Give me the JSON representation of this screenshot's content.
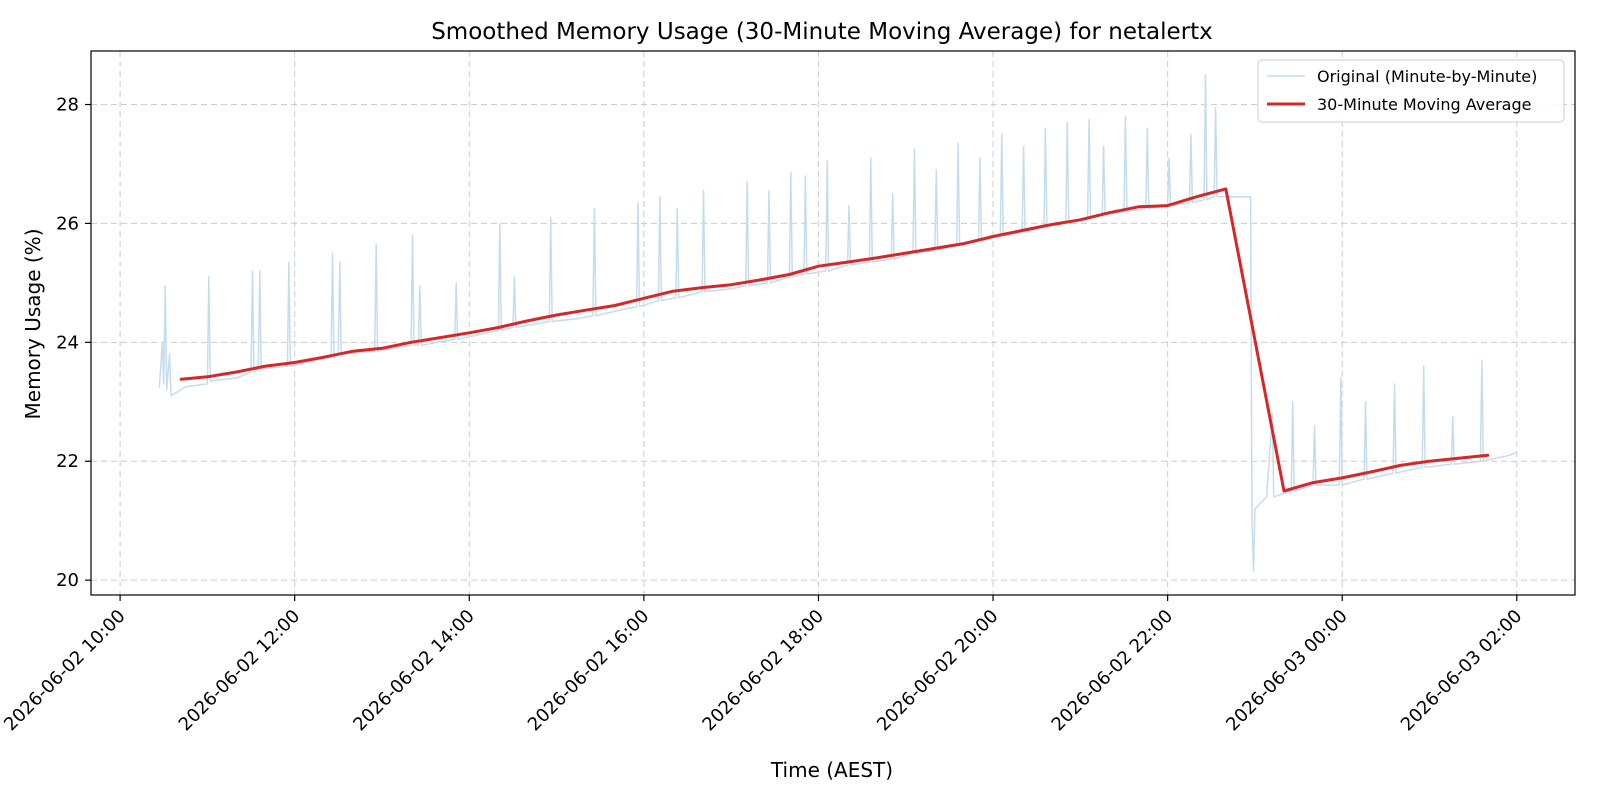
{
  "chart_data": {
    "type": "line",
    "title": "Smoothed Memory Usage (30-Minute Moving Average) for netalertx",
    "xlabel": "Time (AEST)",
    "ylabel": "Memory Usage (%)",
    "xlim": [
      "2026-06-02 09:40",
      "2026-06-03 02:40"
    ],
    "ylim": [
      19.75,
      28.9
    ],
    "grid": true,
    "legend": "top-right",
    "x_ticks": [
      "2026-06-02 10:00",
      "2026-06-02 12:00",
      "2026-06-02 14:00",
      "2026-06-02 16:00",
      "2026-06-02 18:00",
      "2026-06-02 20:00",
      "2026-06-02 22:00",
      "2026-06-03 00:00",
      "2026-06-03 02:00"
    ],
    "x_tick_labels": [
      "2026-06-02 10:00",
      "2026-06-02 12:00",
      "2026-06-02 14:00",
      "2026-06-02 16:00",
      "2026-06-02 18:00",
      "2026-06-02 20:00",
      "2026-06-02 22:00",
      "2026-06-03 00:00",
      "2026-06-03 02:00"
    ],
    "y_ticks": [
      20,
      22,
      24,
      26,
      28
    ],
    "y_tick_labels": [
      "20",
      "22",
      "24",
      "26",
      "28"
    ],
    "series": [
      {
        "name": "Original (Minute-by-Minute)",
        "color": "#c6dcec",
        "points": [
          [
            "2026-06-02 10:27",
            23.25
          ],
          [
            "2026-06-02 10:29",
            24.0
          ],
          [
            "2026-06-02 10:30",
            23.3
          ],
          [
            "2026-06-02 10:31",
            24.95
          ],
          [
            "2026-06-02 10:32",
            23.2
          ],
          [
            "2026-06-02 10:34",
            23.8
          ],
          [
            "2026-06-02 10:35",
            23.1
          ],
          [
            "2026-06-02 10:45",
            23.25
          ],
          [
            "2026-06-02 11:00",
            23.3
          ],
          [
            "2026-06-02 11:01",
            25.1
          ],
          [
            "2026-06-02 11:02",
            23.35
          ],
          [
            "2026-06-02 11:20",
            23.4
          ],
          [
            "2026-06-02 11:30",
            23.5
          ],
          [
            "2026-06-02 11:31",
            25.2
          ],
          [
            "2026-06-02 11:32",
            23.5
          ],
          [
            "2026-06-02 11:35",
            23.55
          ],
          [
            "2026-06-02 11:36",
            25.2
          ],
          [
            "2026-06-02 11:37",
            23.55
          ],
          [
            "2026-06-02 11:55",
            23.6
          ],
          [
            "2026-06-02 11:56",
            25.35
          ],
          [
            "2026-06-02 11:57",
            23.6
          ],
          [
            "2026-06-02 12:15",
            23.7
          ],
          [
            "2026-06-02 12:25",
            23.75
          ],
          [
            "2026-06-02 12:26",
            25.5
          ],
          [
            "2026-06-02 12:27",
            23.75
          ],
          [
            "2026-06-02 12:30",
            23.8
          ],
          [
            "2026-06-02 12:31",
            25.35
          ],
          [
            "2026-06-02 12:32",
            23.8
          ],
          [
            "2026-06-02 12:55",
            23.85
          ],
          [
            "2026-06-02 12:56",
            25.65
          ],
          [
            "2026-06-02 12:57",
            23.85
          ],
          [
            "2026-06-02 13:20",
            23.95
          ],
          [
            "2026-06-02 13:21",
            25.8
          ],
          [
            "2026-06-02 13:22",
            23.95
          ],
          [
            "2026-06-02 13:25",
            23.95
          ],
          [
            "2026-06-02 13:26",
            24.95
          ],
          [
            "2026-06-02 13:27",
            23.95
          ],
          [
            "2026-06-02 13:50",
            24.05
          ],
          [
            "2026-06-02 13:51",
            25.0
          ],
          [
            "2026-06-02 13:52",
            24.05
          ],
          [
            "2026-06-02 14:20",
            24.2
          ],
          [
            "2026-06-02 14:21",
            26.0
          ],
          [
            "2026-06-02 14:22",
            24.2
          ],
          [
            "2026-06-02 14:30",
            24.25
          ],
          [
            "2026-06-02 14:31",
            25.1
          ],
          [
            "2026-06-02 14:32",
            24.25
          ],
          [
            "2026-06-02 14:55",
            24.35
          ],
          [
            "2026-06-02 14:56",
            26.1
          ],
          [
            "2026-06-02 14:57",
            24.35
          ],
          [
            "2026-06-02 15:15",
            24.4
          ],
          [
            "2026-06-02 15:25",
            24.45
          ],
          [
            "2026-06-02 15:26",
            26.25
          ],
          [
            "2026-06-02 15:27",
            24.45
          ],
          [
            "2026-06-02 15:45",
            24.55
          ],
          [
            "2026-06-02 15:55",
            24.6
          ],
          [
            "2026-06-02 15:56",
            26.35
          ],
          [
            "2026-06-02 15:57",
            24.6
          ],
          [
            "2026-06-02 16:10",
            24.7
          ],
          [
            "2026-06-02 16:11",
            26.45
          ],
          [
            "2026-06-02 16:12",
            24.7
          ],
          [
            "2026-06-02 16:22",
            24.75
          ],
          [
            "2026-06-02 16:23",
            26.25
          ],
          [
            "2026-06-02 16:24",
            24.75
          ],
          [
            "2026-06-02 16:40",
            24.85
          ],
          [
            "2026-06-02 16:41",
            26.55
          ],
          [
            "2026-06-02 16:42",
            24.85
          ],
          [
            "2026-06-02 17:00",
            24.9
          ],
          [
            "2026-06-02 17:10",
            24.95
          ],
          [
            "2026-06-02 17:11",
            26.7
          ],
          [
            "2026-06-02 17:12",
            24.95
          ],
          [
            "2026-06-02 17:25",
            25.0
          ],
          [
            "2026-06-02 17:26",
            26.55
          ],
          [
            "2026-06-02 17:27",
            25.0
          ],
          [
            "2026-06-02 17:40",
            25.1
          ],
          [
            "2026-06-02 17:41",
            26.85
          ],
          [
            "2026-06-02 17:42",
            25.1
          ],
          [
            "2026-06-02 17:50",
            25.15
          ],
          [
            "2026-06-02 17:51",
            26.8
          ],
          [
            "2026-06-02 17:52",
            25.15
          ],
          [
            "2026-06-02 18:05",
            25.2
          ],
          [
            "2026-06-02 18:06",
            27.05
          ],
          [
            "2026-06-02 18:07",
            25.2
          ],
          [
            "2026-06-02 18:20",
            25.3
          ],
          [
            "2026-06-02 18:21",
            26.3
          ],
          [
            "2026-06-02 18:22",
            25.3
          ],
          [
            "2026-06-02 18:35",
            25.35
          ],
          [
            "2026-06-02 18:36",
            27.1
          ],
          [
            "2026-06-02 18:37",
            25.35
          ],
          [
            "2026-06-02 18:50",
            25.4
          ],
          [
            "2026-06-02 18:51",
            26.5
          ],
          [
            "2026-06-02 18:52",
            25.4
          ],
          [
            "2026-06-02 19:05",
            25.5
          ],
          [
            "2026-06-02 19:06",
            27.25
          ],
          [
            "2026-06-02 19:07",
            25.5
          ],
          [
            "2026-06-02 19:20",
            25.55
          ],
          [
            "2026-06-02 19:21",
            26.9
          ],
          [
            "2026-06-02 19:22",
            25.55
          ],
          [
            "2026-06-02 19:35",
            25.65
          ],
          [
            "2026-06-02 19:36",
            27.35
          ],
          [
            "2026-06-02 19:37",
            25.65
          ],
          [
            "2026-06-02 19:50",
            25.7
          ],
          [
            "2026-06-02 19:51",
            27.1
          ],
          [
            "2026-06-02 19:52",
            25.7
          ],
          [
            "2026-06-02 20:05",
            25.8
          ],
          [
            "2026-06-02 20:06",
            27.5
          ],
          [
            "2026-06-02 20:07",
            25.8
          ],
          [
            "2026-06-02 20:20",
            25.85
          ],
          [
            "2026-06-02 20:21",
            27.3
          ],
          [
            "2026-06-02 20:22",
            25.85
          ],
          [
            "2026-06-02 20:35",
            25.95
          ],
          [
            "2026-06-02 20:36",
            27.6
          ],
          [
            "2026-06-02 20:37",
            25.95
          ],
          [
            "2026-06-02 20:50",
            26.0
          ],
          [
            "2026-06-02 20:51",
            27.7
          ],
          [
            "2026-06-02 20:52",
            26.0
          ],
          [
            "2026-06-02 21:05",
            26.1
          ],
          [
            "2026-06-02 21:06",
            27.75
          ],
          [
            "2026-06-02 21:07",
            26.1
          ],
          [
            "2026-06-02 21:15",
            26.15
          ],
          [
            "2026-06-02 21:16",
            27.3
          ],
          [
            "2026-06-02 21:17",
            26.15
          ],
          [
            "2026-06-02 21:30",
            26.2
          ],
          [
            "2026-06-02 21:31",
            27.8
          ],
          [
            "2026-06-02 21:32",
            26.2
          ],
          [
            "2026-06-02 21:45",
            26.25
          ],
          [
            "2026-06-02 21:46",
            27.6
          ],
          [
            "2026-06-02 21:47",
            26.25
          ],
          [
            "2026-06-02 22:00",
            26.3
          ],
          [
            "2026-06-02 22:01",
            27.1
          ],
          [
            "2026-06-02 22:02",
            26.3
          ],
          [
            "2026-06-02 22:15",
            26.35
          ],
          [
            "2026-06-02 22:16",
            27.5
          ],
          [
            "2026-06-02 22:17",
            26.35
          ],
          [
            "2026-06-02 22:25",
            26.4
          ],
          [
            "2026-06-02 22:26",
            28.5
          ],
          [
            "2026-06-02 22:27",
            26.4
          ],
          [
            "2026-06-02 22:32",
            26.45
          ],
          [
            "2026-06-02 22:33",
            27.95
          ],
          [
            "2026-06-02 22:34",
            26.45
          ],
          [
            "2026-06-02 22:57",
            26.45
          ],
          [
            "2026-06-02 22:58",
            21.0
          ],
          [
            "2026-06-02 22:59",
            20.15
          ],
          [
            "2026-06-02 23:00",
            21.2
          ],
          [
            "2026-06-02 23:08",
            21.4
          ],
          [
            "2026-06-02 23:12",
            22.8
          ],
          [
            "2026-06-02 23:13",
            21.4
          ],
          [
            "2026-06-02 23:25",
            21.5
          ],
          [
            "2026-06-02 23:26",
            23.0
          ],
          [
            "2026-06-02 23:27",
            21.5
          ],
          [
            "2026-06-02 23:40",
            21.6
          ],
          [
            "2026-06-02 23:41",
            22.6
          ],
          [
            "2026-06-02 23:42",
            21.6
          ],
          [
            "2026-06-02 23:58",
            21.6
          ],
          [
            "2026-06-02 23:59",
            23.4
          ],
          [
            "2026-06-03 00:00",
            21.6
          ],
          [
            "2026-06-03 00:15",
            21.7
          ],
          [
            "2026-06-03 00:16",
            23.0
          ],
          [
            "2026-06-03 00:17",
            21.7
          ],
          [
            "2026-06-03 00:35",
            21.8
          ],
          [
            "2026-06-03 00:36",
            23.3
          ],
          [
            "2026-06-03 00:37",
            21.8
          ],
          [
            "2026-06-03 00:55",
            21.9
          ],
          [
            "2026-06-03 00:56",
            23.6
          ],
          [
            "2026-06-03 00:57",
            21.9
          ],
          [
            "2026-06-03 01:15",
            21.95
          ],
          [
            "2026-06-03 01:16",
            22.75
          ],
          [
            "2026-06-03 01:17",
            21.95
          ],
          [
            "2026-06-03 01:35",
            22.0
          ],
          [
            "2026-06-03 01:36",
            23.7
          ],
          [
            "2026-06-03 01:37",
            22.0
          ],
          [
            "2026-06-03 01:45",
            22.05
          ],
          [
            "2026-06-03 01:55",
            22.1
          ],
          [
            "2026-06-03 02:00",
            22.15
          ]
        ]
      },
      {
        "name": "30-Minute Moving Average",
        "color": "#d62728",
        "points": [
          [
            "2026-06-02 10:42",
            23.38
          ],
          [
            "2026-06-02 11:00",
            23.42
          ],
          [
            "2026-06-02 11:20",
            23.5
          ],
          [
            "2026-06-02 11:40",
            23.6
          ],
          [
            "2026-06-02 12:00",
            23.66
          ],
          [
            "2026-06-02 12:20",
            23.75
          ],
          [
            "2026-06-02 12:40",
            23.85
          ],
          [
            "2026-06-02 13:00",
            23.9
          ],
          [
            "2026-06-02 13:20",
            24.0
          ],
          [
            "2026-06-02 13:40",
            24.08
          ],
          [
            "2026-06-02 14:00",
            24.16
          ],
          [
            "2026-06-02 14:20",
            24.25
          ],
          [
            "2026-06-02 14:40",
            24.36
          ],
          [
            "2026-06-02 15:00",
            24.46
          ],
          [
            "2026-06-02 15:20",
            24.54
          ],
          [
            "2026-06-02 15:40",
            24.62
          ],
          [
            "2026-06-02 16:00",
            24.74
          ],
          [
            "2026-06-02 16:20",
            24.86
          ],
          [
            "2026-06-02 16:40",
            24.92
          ],
          [
            "2026-06-02 17:00",
            24.97
          ],
          [
            "2026-06-02 17:20",
            25.05
          ],
          [
            "2026-06-02 17:40",
            25.14
          ],
          [
            "2026-06-02 18:00",
            25.28
          ],
          [
            "2026-06-02 18:20",
            25.35
          ],
          [
            "2026-06-02 18:40",
            25.42
          ],
          [
            "2026-06-02 19:00",
            25.5
          ],
          [
            "2026-06-02 19:20",
            25.58
          ],
          [
            "2026-06-02 19:40",
            25.66
          ],
          [
            "2026-06-02 20:00",
            25.78
          ],
          [
            "2026-06-02 20:20",
            25.88
          ],
          [
            "2026-06-02 20:40",
            25.98
          ],
          [
            "2026-06-02 21:00",
            26.06
          ],
          [
            "2026-06-02 21:20",
            26.18
          ],
          [
            "2026-06-02 21:40",
            26.28
          ],
          [
            "2026-06-02 22:00",
            26.3
          ],
          [
            "2026-06-02 22:20",
            26.45
          ],
          [
            "2026-06-02 22:40",
            26.58
          ],
          [
            "2026-06-02 23:20",
            21.5
          ],
          [
            "2026-06-02 23:40",
            21.64
          ],
          [
            "2026-06-03 00:00",
            21.72
          ],
          [
            "2026-06-03 00:20",
            21.82
          ],
          [
            "2026-06-03 00:40",
            21.93
          ],
          [
            "2026-06-03 01:00",
            22.0
          ],
          [
            "2026-06-03 01:20",
            22.05
          ],
          [
            "2026-06-03 01:40",
            22.1
          ]
        ]
      }
    ]
  }
}
